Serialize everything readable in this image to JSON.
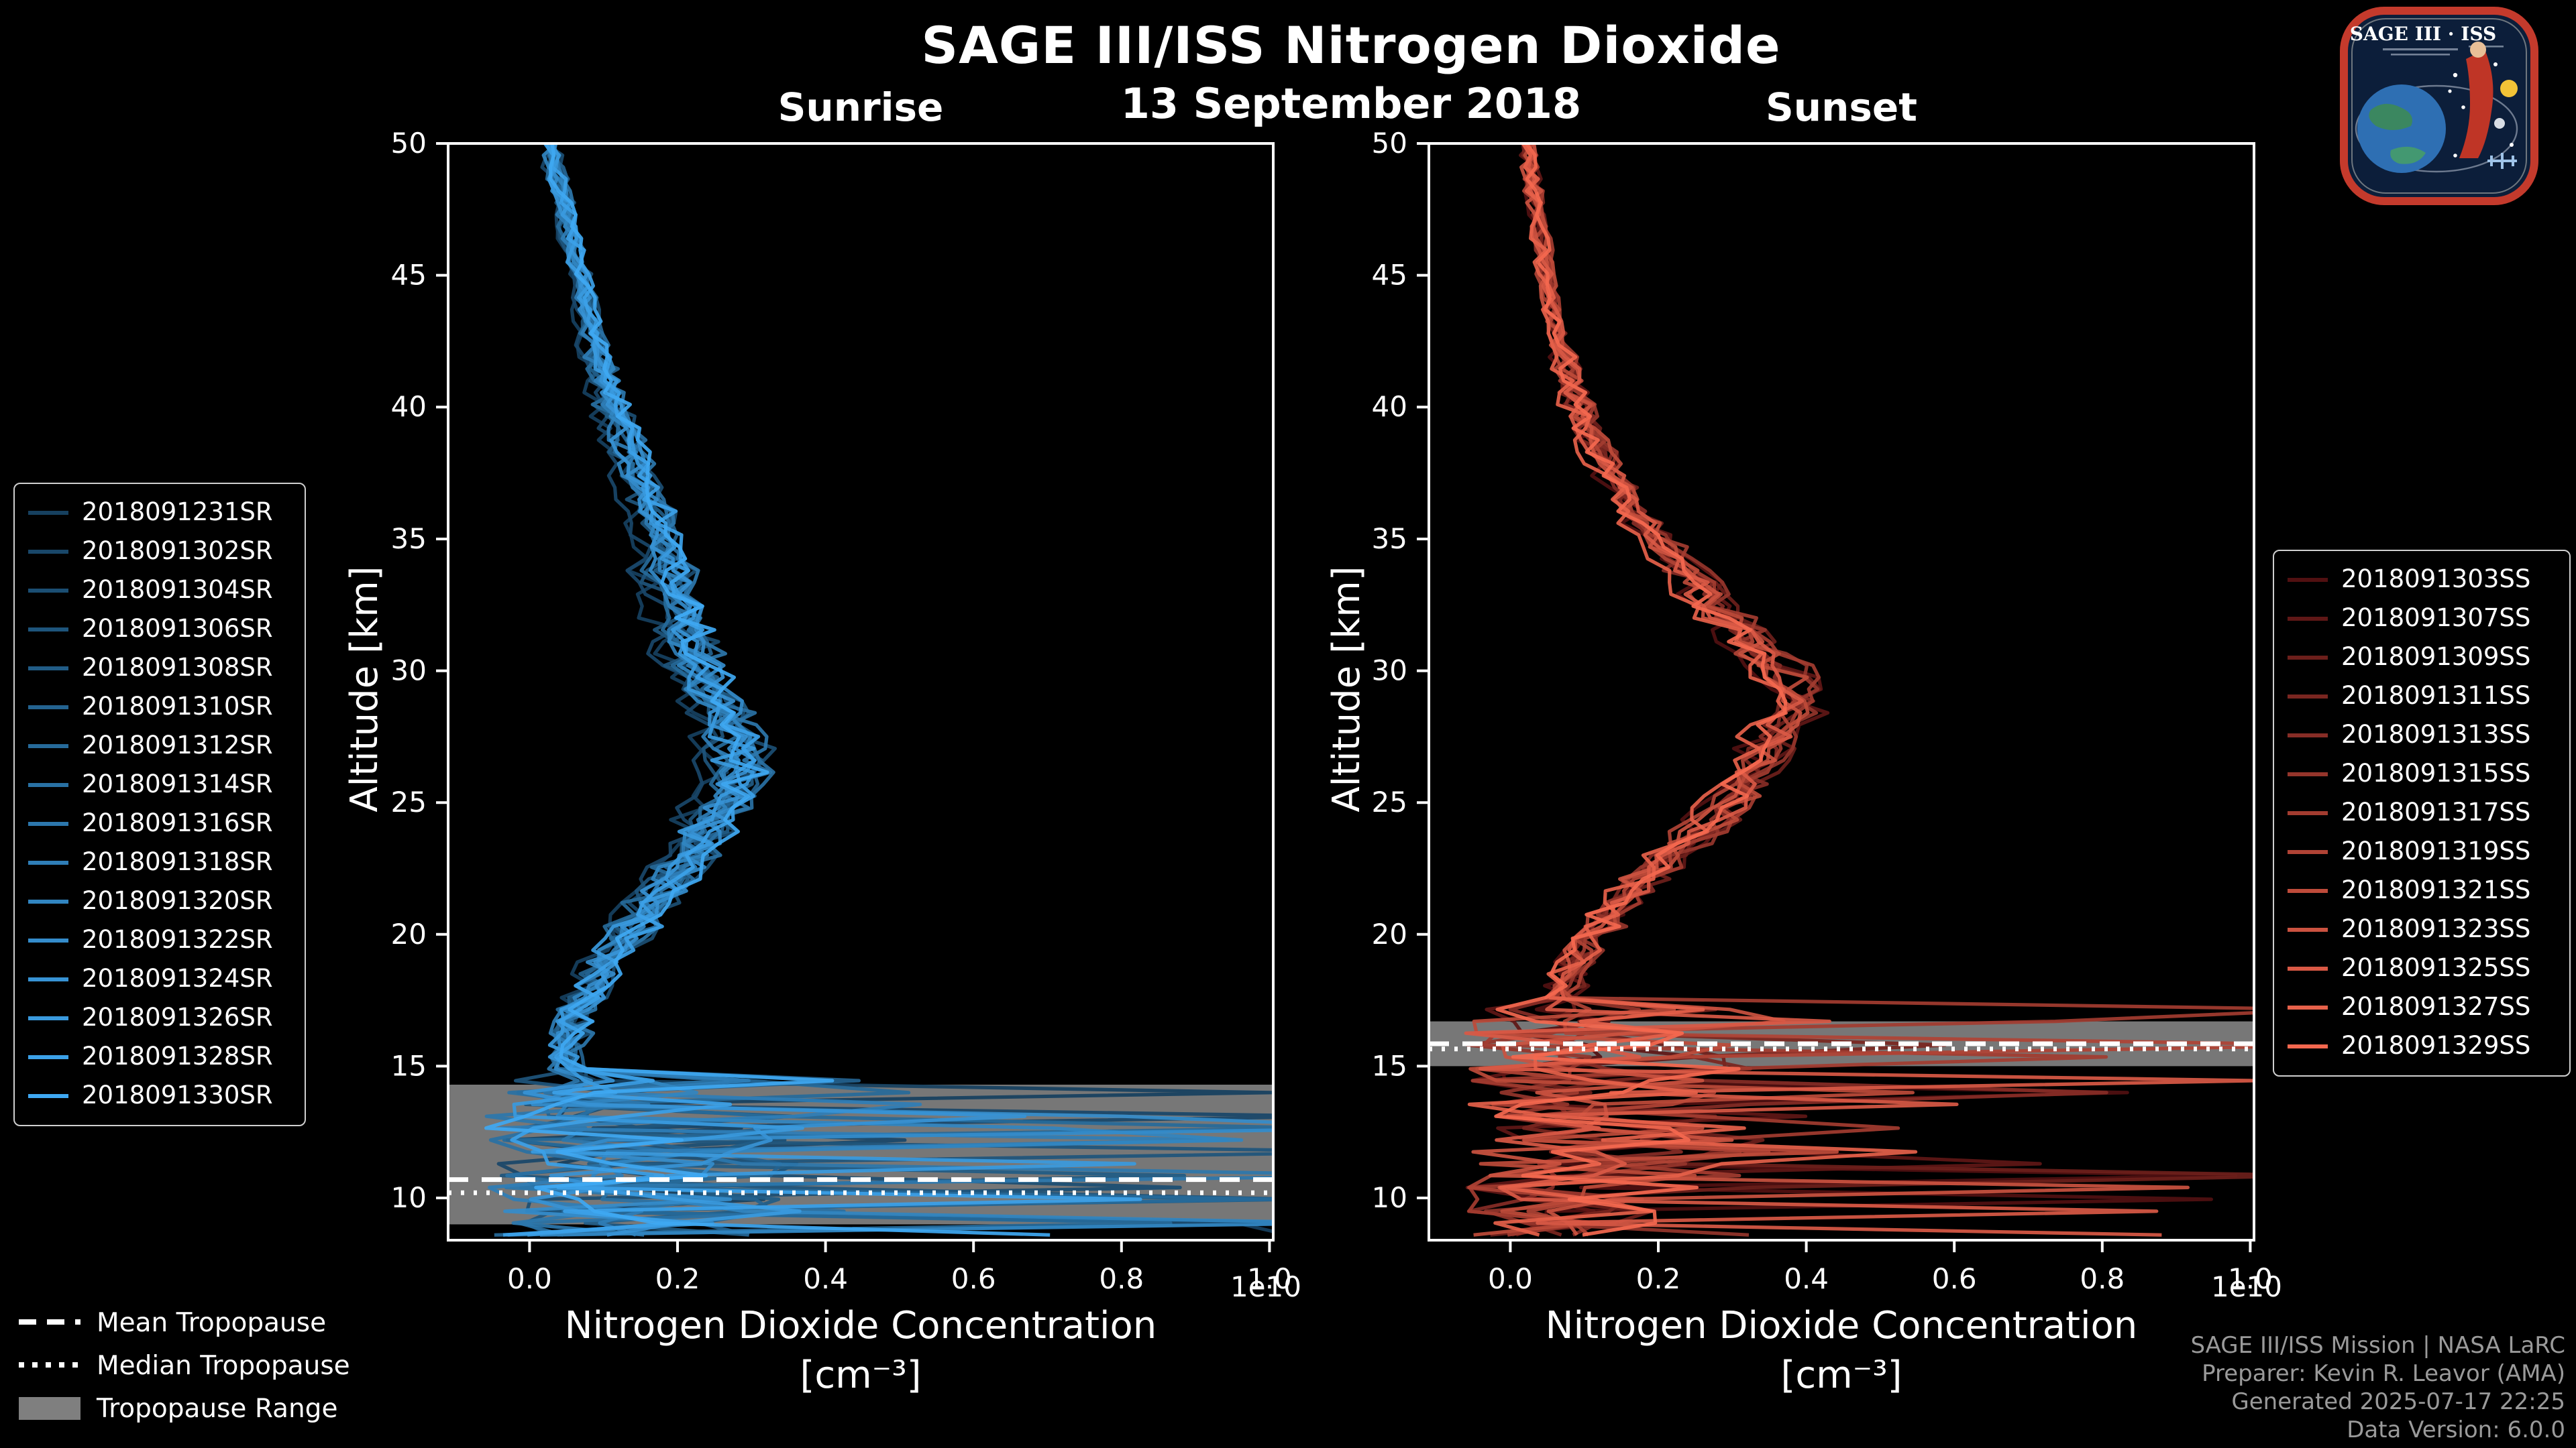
{
  "header": {
    "title": "SAGE III/ISS Nitrogen Dioxide",
    "date": "13 September 2018"
  },
  "logo": {
    "title": "SAGE III · ISS"
  },
  "tropopause_legend": {
    "mean": "Mean Tropopause",
    "median": "Median Tropopause",
    "range": "Tropopause Range"
  },
  "credits": {
    "line1": "SAGE III/ISS Mission | NASA LaRC",
    "line2": "Preparer: Kevin R. Leavor (AMA)",
    "line3": "Generated 2025-07-17 22:25",
    "line4": "Data Version: 6.0.0"
  },
  "chart_data": [
    {
      "type": "line",
      "title": "Sunrise",
      "xlabel": "Nitrogen Dioxide Concentration",
      "xlabel_units": "[cm⁻³]",
      "ylabel": "Altitude [km]",
      "x_offset_label": "1e10",
      "xlim": [
        -0.11,
        1.005
      ],
      "ylim": [
        8.4,
        50
      ],
      "xticks": [
        0,
        0.2,
        0.4,
        0.6,
        0.8,
        1
      ],
      "yticks": [
        10,
        15,
        20,
        25,
        30,
        35,
        40,
        45,
        50
      ],
      "grid": false,
      "legend_position": "outside-left",
      "line_color_range": [
        "#16405f",
        "#3fa8f2"
      ],
      "tropopause": {
        "range_km": [
          9.0,
          14.3
        ],
        "mean_km": 10.7,
        "median_km": 10.2
      },
      "spike_below_km": 14.5,
      "mean_profile": {
        "altitude_km": [
          14.5,
          15,
          16,
          17,
          18,
          19,
          20,
          21,
          22,
          23,
          24,
          25,
          26,
          27,
          28,
          30,
          32,
          34,
          36,
          38,
          40,
          42,
          44,
          46,
          48,
          50
        ],
        "concentration_1e10": [
          0.05,
          0.045,
          0.05,
          0.06,
          0.075,
          0.095,
          0.12,
          0.15,
          0.175,
          0.2,
          0.225,
          0.245,
          0.26,
          0.265,
          0.25,
          0.215,
          0.19,
          0.175,
          0.155,
          0.13,
          0.105,
          0.085,
          0.07,
          0.055,
          0.04,
          0.025
        ]
      },
      "series": [
        {
          "label": "2018091231SR",
          "color": "#16405f"
        },
        {
          "label": "2018091302SR",
          "color": "#194769"
        },
        {
          "label": "2018091304SR",
          "color": "#1b4e73"
        },
        {
          "label": "2018091306SR",
          "color": "#1e557c"
        },
        {
          "label": "2018091308SR",
          "color": "#215c86"
        },
        {
          "label": "2018091310SR",
          "color": "#246390"
        },
        {
          "label": "2018091312SR",
          "color": "#266a9a"
        },
        {
          "label": "2018091314SR",
          "color": "#2971a4"
        },
        {
          "label": "2018091316SR",
          "color": "#2c77ad"
        },
        {
          "label": "2018091318SR",
          "color": "#2f7eb7"
        },
        {
          "label": "2018091320SR",
          "color": "#3185c1"
        },
        {
          "label": "2018091322SR",
          "color": "#348ccb"
        },
        {
          "label": "2018091324SR",
          "color": "#3793d5"
        },
        {
          "label": "2018091326SR",
          "color": "#3a9ade"
        },
        {
          "label": "2018091328SR",
          "color": "#3ca1e8"
        },
        {
          "label": "2018091330SR",
          "color": "#3fa8f2"
        }
      ]
    },
    {
      "type": "line",
      "title": "Sunset",
      "xlabel": "Nitrogen Dioxide Concentration",
      "xlabel_units": "[cm⁻³]",
      "ylabel": "Altitude [km]",
      "x_offset_label": "1e10",
      "xlim": [
        -0.11,
        1.005
      ],
      "ylim": [
        8.4,
        50
      ],
      "xticks": [
        0,
        0.2,
        0.4,
        0.6,
        0.8,
        1
      ],
      "yticks": [
        10,
        15,
        20,
        25,
        30,
        35,
        40,
        45,
        50
      ],
      "grid": false,
      "legend_position": "outside-right",
      "line_color_range": [
        "#511011",
        "#f4684f"
      ],
      "tropopause": {
        "range_km": [
          15.0,
          16.7
        ],
        "mean_km": 15.85,
        "median_km": 15.65
      },
      "spike_below_km": 17.5,
      "mean_profile": {
        "altitude_km": [
          17.5,
          18,
          19,
          20,
          21,
          22,
          23,
          24,
          25,
          26,
          27,
          28,
          29,
          30,
          31,
          32,
          34,
          36,
          38,
          40,
          42,
          44,
          46,
          48,
          50
        ],
        "concentration_1e10": [
          0.065,
          0.07,
          0.085,
          0.105,
          0.13,
          0.16,
          0.2,
          0.24,
          0.275,
          0.3,
          0.32,
          0.345,
          0.365,
          0.335,
          0.3,
          0.27,
          0.21,
          0.155,
          0.115,
          0.085,
          0.065,
          0.05,
          0.04,
          0.03,
          0.02
        ]
      },
      "series": [
        {
          "label": "2018091303SS",
          "color": "#511011"
        },
        {
          "label": "2018091307SS",
          "color": "#5f1716"
        },
        {
          "label": "2018091309SS",
          "color": "#6c1f1b"
        },
        {
          "label": "2018091311SS",
          "color": "#7a2620"
        },
        {
          "label": "2018091313SS",
          "color": "#872d26"
        },
        {
          "label": "2018091315SS",
          "color": "#95352b"
        },
        {
          "label": "2018091317SS",
          "color": "#a33c30"
        },
        {
          "label": "2018091319SS",
          "color": "#b04335"
        },
        {
          "label": "2018091321SS",
          "color": "#be4b3a"
        },
        {
          "label": "2018091323SS",
          "color": "#cb5240"
        },
        {
          "label": "2018091325SS",
          "color": "#d95945"
        },
        {
          "label": "2018091327SS",
          "color": "#e6614a"
        },
        {
          "label": "2018091329SS",
          "color": "#f4684f"
        }
      ]
    }
  ]
}
